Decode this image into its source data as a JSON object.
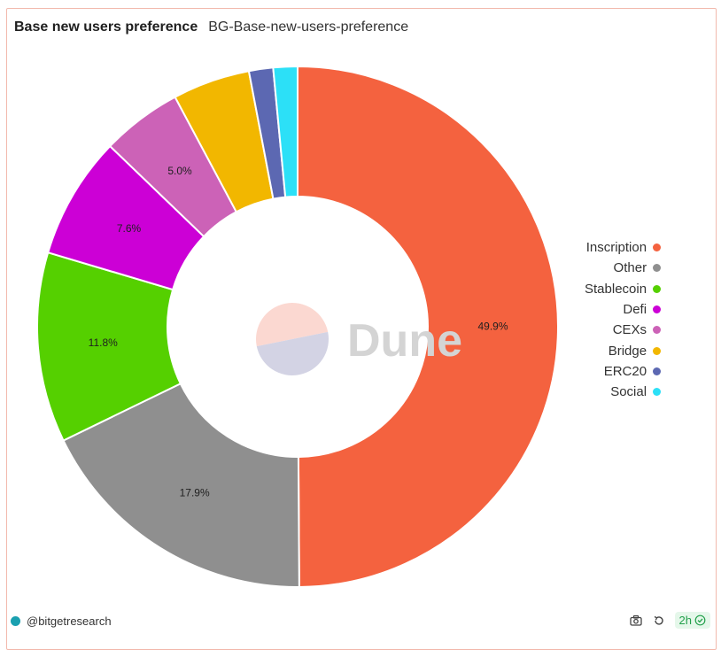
{
  "header": {
    "title": "Base new users preference",
    "subtitle": "BG-Base-new-users-preference"
  },
  "watermark": {
    "text": "Dune",
    "logo_top_color": "#fbd8d1",
    "logo_bottom_color": "#d3d3e4"
  },
  "chart_data": {
    "type": "pie",
    "donut": true,
    "title": "Base new users preference",
    "legend_position": "right",
    "slices": [
      {
        "name": "Inscription",
        "value": 49.9,
        "label": "49.9%",
        "color": "#f4623f"
      },
      {
        "name": "Other",
        "value": 17.9,
        "label": "17.9%",
        "color": "#8f8f8f"
      },
      {
        "name": "Stablecoin",
        "value": 11.8,
        "label": "11.8%",
        "color": "#55d000"
      },
      {
        "name": "Defi",
        "value": 7.6,
        "label": "7.6%",
        "color": "#cc00d6"
      },
      {
        "name": "CEXs",
        "value": 5.0,
        "label": "5.0%",
        "color": "#cc62b7"
      },
      {
        "name": "Bridge",
        "value": 4.8,
        "label": "",
        "color": "#f2b700"
      },
      {
        "name": "ERC20",
        "value": 1.5,
        "label": "",
        "color": "#5c68b2"
      },
      {
        "name": "Social",
        "value": 1.5,
        "label": "",
        "color": "#2ce0f7"
      }
    ]
  },
  "footer": {
    "author": "@bitgetresearch",
    "age": "2h",
    "icons": {
      "camera": "camera-icon",
      "refresh": "refresh-icon",
      "check": "check-circle-icon"
    }
  }
}
